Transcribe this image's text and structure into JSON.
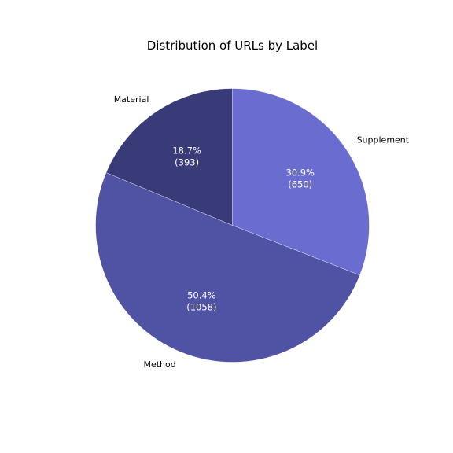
{
  "chart_data": {
    "type": "pie",
    "title": "Distribution of URLs by Label",
    "start_angle_deg": 90,
    "direction": "clockwise",
    "slices": [
      {
        "label": "Supplement",
        "value": 650,
        "percent_label": "30.9%",
        "count_label": "(650)",
        "color": "#6a6cd0"
      },
      {
        "label": "Method",
        "value": 1058,
        "percent_label": "50.4%",
        "count_label": "(1058)",
        "color": "#5053a3"
      },
      {
        "label": "Material",
        "value": 393,
        "percent_label": "18.7%",
        "count_label": "(393)",
        "color": "#393a78"
      }
    ]
  }
}
